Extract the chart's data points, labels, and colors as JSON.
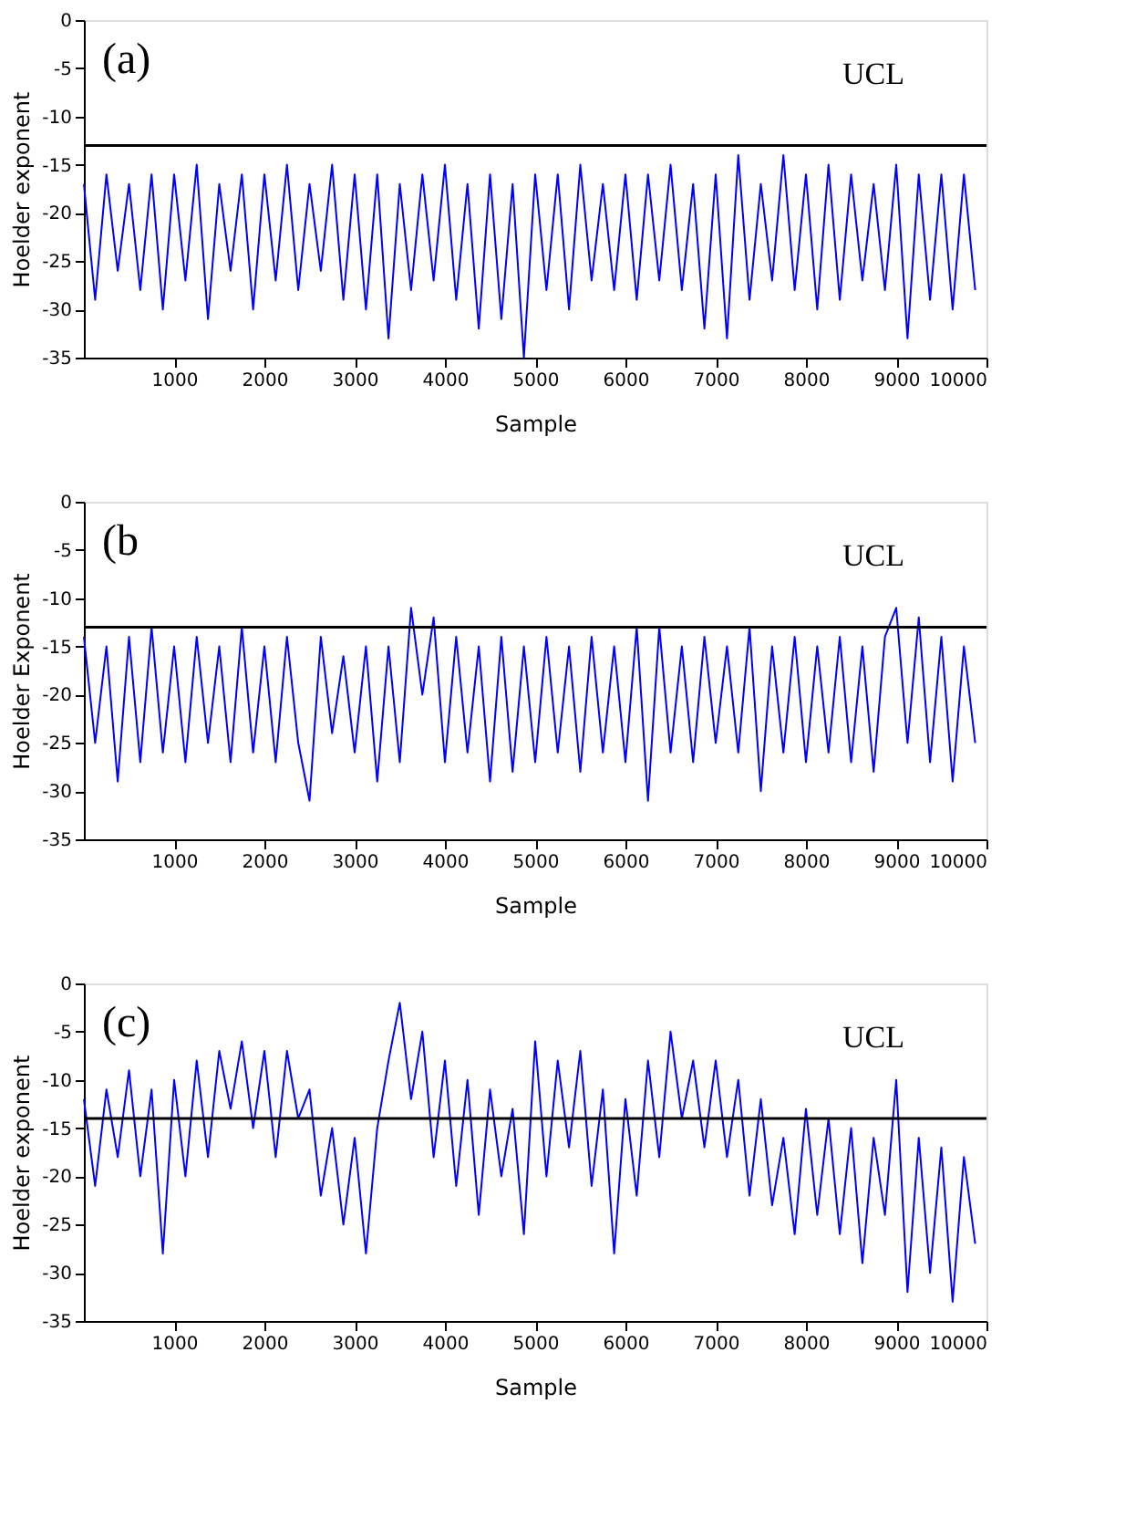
{
  "chart_data": [
    {
      "type": "line",
      "annotations": [
        "(a)"
      ],
      "xlabel": "Sample",
      "ylabel": "Hoelder exponent",
      "grid": false,
      "line_style": "solid",
      "marker": "none",
      "x": [
        0,
        125,
        250,
        375,
        500,
        625,
        750,
        875,
        1000,
        1125,
        1250,
        1375,
        1500,
        1625,
        1750,
        1875,
        2000,
        2125,
        2250,
        2375,
        2500,
        2625,
        2750,
        2875,
        3000,
        3125,
        3250,
        3375,
        3500,
        3625,
        3750,
        3875,
        4000,
        4125,
        4250,
        4375,
        4500,
        4625,
        4750,
        4875,
        5000,
        5125,
        5250,
        5375,
        5500,
        5625,
        5750,
        5875,
        6000,
        6125,
        6250,
        6375,
        6500,
        6625,
        6750,
        6875,
        7000,
        7125,
        7250,
        7375,
        7500,
        7625,
        7750,
        7875,
        8000,
        8125,
        8250,
        8375,
        8500,
        8625,
        8750,
        8875,
        9000,
        9125,
        9250,
        9375,
        9500,
        9625,
        9750,
        9875
      ],
      "series": [
        {
          "color": "#0000ff",
          "values": [
            -17,
            -29,
            -16,
            -26,
            -17,
            -28,
            -16,
            -30,
            -16,
            -27,
            -15,
            -31,
            -17,
            -26,
            -16,
            -30,
            -16,
            -27,
            -15,
            -28,
            -17,
            -26,
            -15,
            -29,
            -16,
            -30,
            -16,
            -33,
            -17,
            -28,
            -16,
            -27,
            -15,
            -29,
            -17,
            -32,
            -16,
            -31,
            -17,
            -35,
            -16,
            -28,
            -16,
            -30,
            -15,
            -27,
            -17,
            -28,
            -16,
            -29,
            -16,
            -27,
            -15,
            -28,
            -17,
            -32,
            -16,
            -33,
            -14,
            -29,
            -17,
            -27,
            -14,
            -28,
            -16,
            -30,
            -15,
            -29,
            -16,
            -27,
            -17,
            -28,
            -15,
            -33,
            -16,
            -29,
            -16,
            -30,
            -16,
            -28
          ]
        }
      ],
      "xlim": [
        0,
        10000
      ],
      "xticks": [
        1000,
        2000,
        3000,
        4000,
        5000,
        6000,
        7000,
        8000,
        9000,
        10000
      ],
      "ylim": [
        -35,
        0
      ],
      "yticks": [
        -35,
        -30,
        -25,
        -20,
        -15,
        -10,
        -5,
        0
      ],
      "ref_lines": [
        {
          "axis": "y",
          "value": -13,
          "label": "UCL",
          "color": "#000000"
        }
      ]
    },
    {
      "type": "line",
      "annotations": [
        "(b"
      ],
      "xlabel": "Sample",
      "ylabel": "Hoelder Exponent",
      "grid": false,
      "line_style": "solid",
      "marker": "none",
      "x": [
        0,
        125,
        250,
        375,
        500,
        625,
        750,
        875,
        1000,
        1125,
        1250,
        1375,
        1500,
        1625,
        1750,
        1875,
        2000,
        2125,
        2250,
        2375,
        2500,
        2625,
        2750,
        2875,
        3000,
        3125,
        3250,
        3375,
        3500,
        3625,
        3750,
        3875,
        4000,
        4125,
        4250,
        4375,
        4500,
        4625,
        4750,
        4875,
        5000,
        5125,
        5250,
        5375,
        5500,
        5625,
        5750,
        5875,
        6000,
        6125,
        6250,
        6375,
        6500,
        6625,
        6750,
        6875,
        7000,
        7125,
        7250,
        7375,
        7500,
        7625,
        7750,
        7875,
        8000,
        8125,
        8250,
        8375,
        8500,
        8625,
        8750,
        8875,
        9000,
        9125,
        9250,
        9375,
        9500,
        9625,
        9750,
        9875
      ],
      "series": [
        {
          "color": "#0000ff",
          "values": [
            -14,
            -25,
            -15,
            -29,
            -14,
            -27,
            -13,
            -26,
            -15,
            -27,
            -14,
            -25,
            -15,
            -27,
            -13,
            -26,
            -15,
            -27,
            -14,
            -25,
            -31,
            -14,
            -24,
            -16,
            -26,
            -15,
            -29,
            -15,
            -27,
            -11,
            -20,
            -12,
            -27,
            -14,
            -26,
            -15,
            -29,
            -14,
            -28,
            -15,
            -27,
            -14,
            -26,
            -15,
            -28,
            -14,
            -26,
            -15,
            -27,
            -13,
            -31,
            -13,
            -26,
            -15,
            -27,
            -14,
            -25,
            -15,
            -26,
            -13,
            -30,
            -15,
            -26,
            -14,
            -27,
            -15,
            -26,
            -14,
            -27,
            -15,
            -28,
            -14,
            -11,
            -25,
            -12,
            -27,
            -14,
            -29,
            -15,
            -25
          ]
        }
      ],
      "xlim": [
        0,
        10000
      ],
      "xticks": [
        1000,
        2000,
        3000,
        4000,
        5000,
        6000,
        7000,
        8000,
        9000,
        10000
      ],
      "ylim": [
        -35,
        0
      ],
      "yticks": [
        -35,
        -30,
        -25,
        -20,
        -15,
        -10,
        -5,
        0
      ],
      "ref_lines": [
        {
          "axis": "y",
          "value": -13,
          "label": "UCL",
          "color": "#000000"
        }
      ]
    },
    {
      "type": "line",
      "annotations": [
        "(c)"
      ],
      "xlabel": "Sample",
      "ylabel": "Hoelder exponent",
      "grid": false,
      "line_style": "solid",
      "marker": "none",
      "x": [
        0,
        125,
        250,
        375,
        500,
        625,
        750,
        875,
        1000,
        1125,
        1250,
        1375,
        1500,
        1625,
        1750,
        1875,
        2000,
        2125,
        2250,
        2375,
        2500,
        2625,
        2750,
        2875,
        3000,
        3125,
        3250,
        3375,
        3500,
        3625,
        3750,
        3875,
        4000,
        4125,
        4250,
        4375,
        4500,
        4625,
        4750,
        4875,
        5000,
        5125,
        5250,
        5375,
        5500,
        5625,
        5750,
        5875,
        6000,
        6125,
        6250,
        6375,
        6500,
        6625,
        6750,
        6875,
        7000,
        7125,
        7250,
        7375,
        7500,
        7625,
        7750,
        7875,
        8000,
        8125,
        8250,
        8375,
        8500,
        8625,
        8750,
        8875,
        9000,
        9125,
        9250,
        9375,
        9500,
        9625,
        9750,
        9875
      ],
      "series": [
        {
          "color": "#0000ff",
          "values": [
            -12,
            -21,
            -11,
            -18,
            -9,
            -20,
            -11,
            -28,
            -10,
            -20,
            -8,
            -18,
            -7,
            -13,
            -6,
            -15,
            -7,
            -18,
            -7,
            -14,
            -11,
            -22,
            -15,
            -25,
            -16,
            -28,
            -15,
            -8,
            -2,
            -12,
            -5,
            -18,
            -8,
            -21,
            -10,
            -24,
            -11,
            -20,
            -13,
            -26,
            -6,
            -20,
            -8,
            -17,
            -7,
            -21,
            -11,
            -28,
            -12,
            -22,
            -8,
            -18,
            -5,
            -14,
            -8,
            -17,
            -8,
            -18,
            -10,
            -22,
            -12,
            -23,
            -16,
            -26,
            -13,
            -24,
            -14,
            -26,
            -15,
            -29,
            -16,
            -24,
            -10,
            -32,
            -16,
            -30,
            -17,
            -33,
            -18,
            -27
          ]
        }
      ],
      "xlim": [
        0,
        10000
      ],
      "xticks": [
        1000,
        2000,
        3000,
        4000,
        5000,
        6000,
        7000,
        8000,
        9000,
        10000
      ],
      "ylim": [
        -35,
        0
      ],
      "yticks": [
        -35,
        -30,
        -25,
        -20,
        -15,
        -10,
        -5,
        0
      ],
      "ref_lines": [
        {
          "axis": "y",
          "value": -14,
          "label": "UCL",
          "color": "#000000"
        }
      ]
    }
  ]
}
